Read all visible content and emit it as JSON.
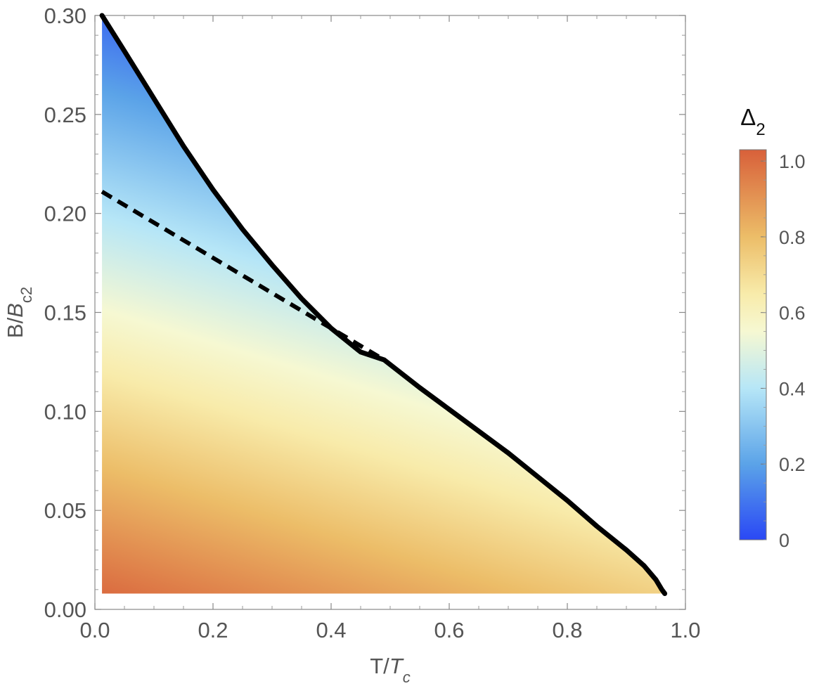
{
  "chart_data": {
    "type": "heatmap",
    "title": "",
    "xlabel": {
      "main": "T/",
      "italic": "T",
      "sub": "c"
    },
    "ylabel": {
      "main": "B/",
      "italic": "B",
      "sub": "c2"
    },
    "xlim": [
      0.0,
      1.0
    ],
    "ylim": [
      0.0,
      0.3
    ],
    "x_ticks": [
      "0.0",
      "0.2",
      "0.4",
      "0.6",
      "0.8",
      "1.0"
    ],
    "y_ticks": [
      "0.00",
      "0.05",
      "0.10",
      "0.15",
      "0.20",
      "0.25",
      "0.30"
    ],
    "colorbar": {
      "title": {
        "main": "Δ",
        "sub": "2"
      },
      "range": [
        0,
        1.03
      ],
      "ticks": [
        "0",
        "0.2",
        "0.4",
        "0.6",
        "0.8",
        "1.0"
      ],
      "gradient": [
        {
          "v": 0.0,
          "color": "#2a48f5"
        },
        {
          "v": 0.2,
          "color": "#5ba3e8"
        },
        {
          "v": 0.4,
          "color": "#b6e6f7"
        },
        {
          "v": 0.55,
          "color": "#f6f8d2"
        },
        {
          "v": 0.65,
          "color": "#f8ebaa"
        },
        {
          "v": 0.8,
          "color": "#ecbd68"
        },
        {
          "v": 1.03,
          "color": "#d8603a"
        }
      ]
    },
    "region_bottom_y": 0.008,
    "region_left_x": 0.012,
    "series": [
      {
        "style": "solid",
        "color": "#000000",
        "points": [
          [
            0.012,
            0.3
          ],
          [
            0.05,
            0.282
          ],
          [
            0.1,
            0.258
          ],
          [
            0.15,
            0.234
          ],
          [
            0.2,
            0.212
          ],
          [
            0.25,
            0.192
          ],
          [
            0.3,
            0.174
          ],
          [
            0.35,
            0.157
          ],
          [
            0.4,
            0.142
          ],
          [
            0.45,
            0.13
          ],
          [
            0.49,
            0.126
          ],
          [
            0.55,
            0.112
          ],
          [
            0.6,
            0.101
          ],
          [
            0.65,
            0.09
          ],
          [
            0.7,
            0.079
          ],
          [
            0.75,
            0.067
          ],
          [
            0.8,
            0.055
          ],
          [
            0.85,
            0.042
          ],
          [
            0.9,
            0.03
          ],
          [
            0.93,
            0.022
          ],
          [
            0.95,
            0.015
          ],
          [
            0.96,
            0.01
          ],
          [
            0.965,
            0.008
          ]
        ]
      },
      {
        "style": "dashed",
        "color": "#000000",
        "points": [
          [
            0.012,
            0.211
          ],
          [
            0.49,
            0.126
          ]
        ]
      }
    ]
  }
}
